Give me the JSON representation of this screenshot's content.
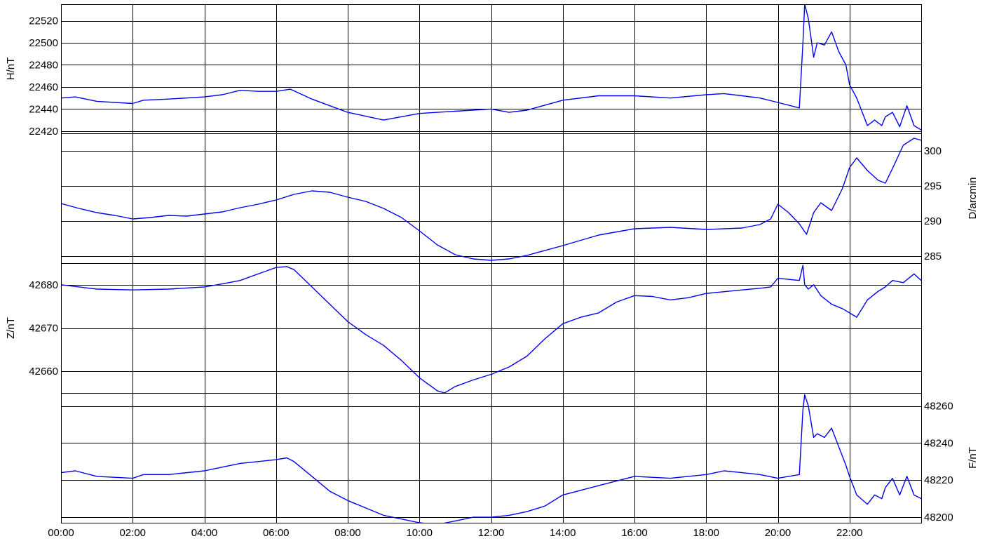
{
  "chart_data": {
    "type": "line",
    "trace_color": "#0000ee",
    "grid": true,
    "x_ticks": [
      "00:00",
      "02:00",
      "04:00",
      "06:00",
      "08:00",
      "10:00",
      "12:00",
      "14:00",
      "16:00",
      "18:00",
      "20:00",
      "22:00"
    ],
    "x_range_hours": [
      0,
      24
    ],
    "panels": [
      {
        "id": "H",
        "ylabel": "H/nT",
        "label_side": "left",
        "ylim": [
          22418,
          22535
        ],
        "yticks": [
          22420,
          22440,
          22460,
          22480,
          22500,
          22520
        ],
        "x": [
          0,
          0.4,
          1,
          2,
          2.3,
          3,
          4,
          4.5,
          5,
          5.5,
          6,
          6.4,
          7,
          7.5,
          8,
          9,
          10,
          11,
          12,
          12.5,
          13,
          14,
          15,
          16,
          17,
          18,
          18.5,
          19,
          19.5,
          20,
          20.6,
          20.7,
          20.75,
          20.85,
          21,
          21.1,
          21.3,
          21.5,
          21.7,
          21.9,
          22,
          22.2,
          22.5,
          22.7,
          22.9,
          23,
          23.2,
          23.4,
          23.6,
          23.8,
          24
        ],
        "values": [
          22450,
          22451,
          22447,
          22445,
          22448,
          22449,
          22451,
          22453,
          22457,
          22456,
          22456,
          22458,
          22449,
          22443,
          22437,
          22430,
          22436,
          22438,
          22440,
          22437,
          22439,
          22448,
          22452,
          22452,
          22450,
          22453,
          22454,
          22452,
          22450,
          22446,
          22441,
          22500,
          22535,
          22522,
          22487,
          22500,
          22498,
          22510,
          22492,
          22480,
          22462,
          22450,
          22425,
          22430,
          22425,
          22433,
          22437,
          22424,
          22443,
          22425,
          22421
        ]
      },
      {
        "id": "D",
        "ylabel": "D/arcmin",
        "label_side": "right",
        "ylim": [
          284,
          302.5
        ],
        "yticks": [
          285,
          290,
          295,
          300
        ],
        "x": [
          0,
          0.5,
          1,
          1.5,
          2,
          2.5,
          3,
          3.5,
          4,
          4.5,
          5,
          5.5,
          6,
          6.5,
          7,
          7.5,
          8,
          8.5,
          9,
          9.5,
          10,
          10.5,
          11,
          11.5,
          12,
          12.5,
          13,
          14,
          15,
          16,
          17,
          18,
          19,
          19.5,
          19.8,
          20,
          20.3,
          20.6,
          20.8,
          21,
          21.2,
          21.5,
          21.8,
          22,
          22.2,
          22.5,
          22.8,
          23,
          23.2,
          23.5,
          23.8,
          24
        ],
        "values": [
          292.5,
          291.8,
          291.2,
          290.8,
          290.3,
          290.5,
          290.8,
          290.7,
          291,
          291.3,
          291.9,
          292.4,
          293,
          293.8,
          294.3,
          294.1,
          293.4,
          292.8,
          291.8,
          290.5,
          288.6,
          286.6,
          285.2,
          284.6,
          284.4,
          284.6,
          285.1,
          286.5,
          288,
          288.9,
          289.1,
          288.8,
          289,
          289.5,
          290.3,
          292.4,
          291.2,
          289.6,
          288.1,
          291.2,
          292.6,
          291.5,
          294.6,
          297.6,
          299,
          297.2,
          295.8,
          295.4,
          297.5,
          300.8,
          301.8,
          301.5
        ]
      },
      {
        "id": "Z",
        "ylabel": "Z/nT",
        "label_side": "left",
        "ylim": [
          42655,
          42685
        ],
        "yticks": [
          42660,
          42670,
          42680
        ],
        "x": [
          0,
          0.5,
          1,
          2,
          3,
          4,
          4.5,
          5,
          5.5,
          6,
          6.3,
          6.5,
          7,
          7.5,
          8,
          8.5,
          9,
          9.5,
          10,
          10.5,
          10.7,
          11,
          11.5,
          12,
          12.5,
          13,
          13.5,
          14,
          14.5,
          15,
          15.5,
          16,
          16.5,
          17,
          17.5,
          18,
          18.5,
          19,
          19.5,
          19.8,
          20,
          20.6,
          20.7,
          20.75,
          20.85,
          21,
          21.2,
          21.5,
          21.8,
          22,
          22.2,
          22.5,
          22.8,
          23,
          23.2,
          23.5,
          23.8,
          24
        ],
        "values": [
          42680,
          42679.5,
          42679,
          42678.8,
          42679,
          42679.5,
          42680.2,
          42681,
          42682.5,
          42684,
          42684.2,
          42683.5,
          42679.5,
          42675.5,
          42671.5,
          42668.5,
          42666,
          42662.5,
          42658.5,
          42655.5,
          42655,
          42656.5,
          42658,
          42659.3,
          42661,
          42663.5,
          42667.5,
          42671,
          42672.5,
          42673.5,
          42676,
          42677.5,
          42677.3,
          42676.5,
          42677,
          42678,
          42678.4,
          42678.8,
          42679.2,
          42679.5,
          42681.5,
          42681,
          42684.5,
          42680,
          42679,
          42680,
          42677.5,
          42675.5,
          42674.5,
          42673.5,
          42672.5,
          42676.5,
          42678.5,
          42679.5,
          42681,
          42680.5,
          42682.5,
          42681
        ]
      },
      {
        "id": "F",
        "ylabel": "F/nT",
        "label_side": "right",
        "ylim": [
          48197,
          48267
        ],
        "yticks": [
          48200,
          48220,
          48240,
          48260
        ],
        "x": [
          0,
          0.4,
          1,
          2,
          2.3,
          3,
          4,
          4.5,
          5,
          5.5,
          6,
          6.3,
          6.5,
          7,
          7.5,
          8,
          8.5,
          9,
          9.5,
          10,
          10.5,
          11,
          11.5,
          12,
          12.5,
          13,
          13.5,
          14,
          15,
          16,
          17,
          18,
          18.5,
          19,
          19.5,
          20,
          20.6,
          20.7,
          20.75,
          20.85,
          21,
          21.1,
          21.3,
          21.5,
          21.7,
          21.9,
          22,
          22.2,
          22.5,
          22.7,
          22.9,
          23,
          23.2,
          23.4,
          23.6,
          23.8,
          24
        ],
        "values": [
          48224,
          48225,
          48222,
          48221,
          48223,
          48223,
          48225,
          48227,
          48229,
          48230,
          48231,
          48232,
          48230,
          48222,
          48214,
          48209,
          48205,
          48201,
          48199,
          48197,
          48196,
          48198,
          48200,
          48200,
          48201,
          48203,
          48206,
          48212,
          48217,
          48222,
          48221,
          48223,
          48225,
          48224,
          48223,
          48221,
          48223,
          48258,
          48266,
          48260,
          48243,
          48245,
          48243,
          48248,
          48238,
          48228,
          48222,
          48212,
          48207,
          48212,
          48210,
          48216,
          48221,
          48212,
          48222,
          48212,
          48210
        ]
      }
    ]
  }
}
